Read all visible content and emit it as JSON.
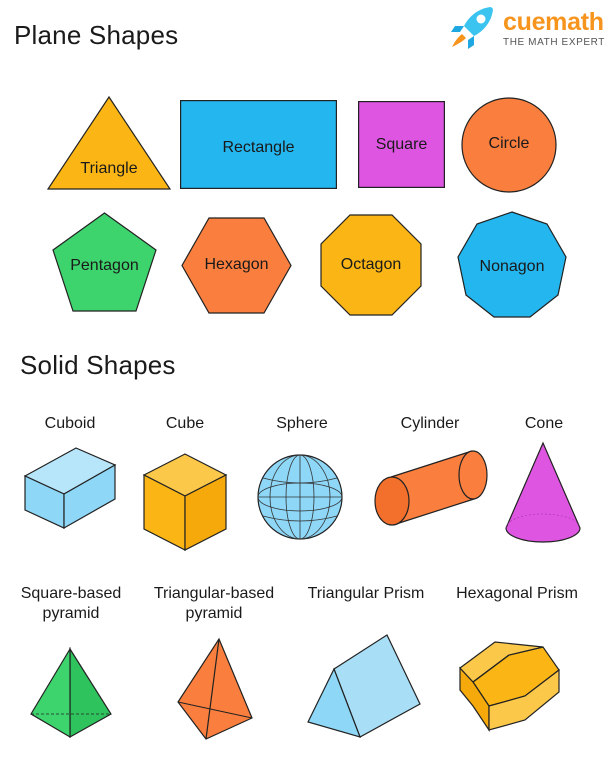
{
  "logo": {
    "brand": "cuemath",
    "tagline": "THE MATH EXPERT",
    "accent": "#f7941d",
    "icon": "rocket-icon"
  },
  "plane": {
    "title": "Plane Shapes",
    "shapes": [
      {
        "name": "Triangle",
        "color": "#fbb615"
      },
      {
        "name": "Rectangle",
        "color": "#23b6ef"
      },
      {
        "name": "Square",
        "color": "#dd55e0"
      },
      {
        "name": "Circle",
        "color": "#fa7f3e"
      },
      {
        "name": "Pentagon",
        "color": "#3dd36d"
      },
      {
        "name": "Hexagon",
        "color": "#fa7f3e"
      },
      {
        "name": "Octagon",
        "color": "#fbb615"
      },
      {
        "name": "Nonagon",
        "color": "#23b6ef"
      }
    ]
  },
  "solid": {
    "title": "Solid Shapes",
    "shapes": [
      {
        "name": "Cuboid",
        "color": "#8ed7f7"
      },
      {
        "name": "Cube",
        "color": "#fbb615"
      },
      {
        "name": "Sphere",
        "color": "#8ed7f7"
      },
      {
        "name": "Cylinder",
        "color": "#fa7f3e"
      },
      {
        "name": "Cone",
        "color": "#dd55e0"
      },
      {
        "name": "Square-based\npyramid",
        "color": "#3dd36d"
      },
      {
        "name": "Triangular-based\npyramid",
        "color": "#fa7f3e"
      },
      {
        "name": "Triangular Prism",
        "color": "#8ed7f7"
      },
      {
        "name": "Hexagonal Prism",
        "color": "#fbb615"
      }
    ]
  }
}
